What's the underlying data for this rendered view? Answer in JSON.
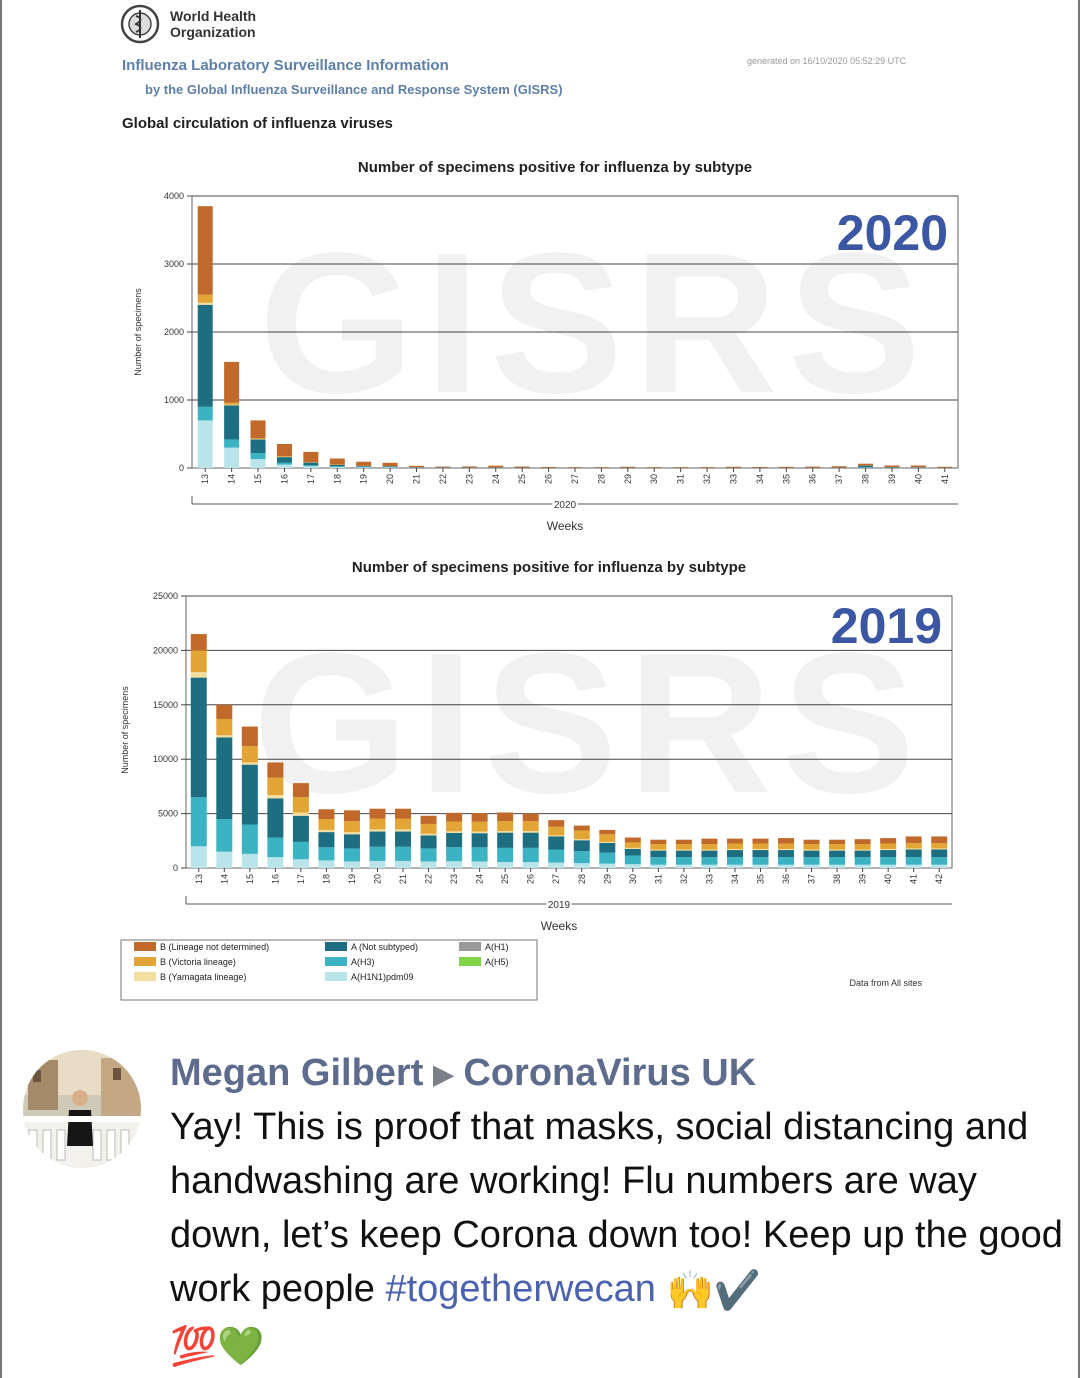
{
  "doc": {
    "org_line1": "World Health",
    "org_line2": "Organization",
    "title1": "Influenza Laboratory Surveillance Information",
    "title2": "by the Global Influenza Surveillance and Response System (GISRS)",
    "generated": "generated on 16/10/2020 05:52:29 UTC",
    "section": "Global circulation of influenza viruses",
    "watermark": "GISRS",
    "source": "Data from All sites"
  },
  "legend": {
    "items": [
      {
        "label": "B (Lineage not determined)",
        "color": "#c0692a"
      },
      {
        "label": "B (Victoria lineage)",
        "color": "#e3a535"
      },
      {
        "label": "B (Yamagata lineage)",
        "color": "#f2dea1"
      },
      {
        "label": "A (Not subtyped)",
        "color": "#1c6e80"
      },
      {
        "label": "A(H3)",
        "color": "#3bb3c2"
      },
      {
        "label": "A(H1N1)pdm09",
        "color": "#b8e4ea"
      },
      {
        "label": "A(H1)",
        "color": "#999999"
      },
      {
        "label": "A(H5)",
        "color": "#7fd447"
      }
    ]
  },
  "chart_data": [
    {
      "type": "bar",
      "stacked": true,
      "title": "Number of specimens positive for influenza by subtype",
      "year_label": "2020",
      "ylabel": "Number of specimens",
      "xlabel": "Weeks",
      "group_label": "2020",
      "ylim": [
        0,
        4000
      ],
      "yticks": [
        0,
        1000,
        2000,
        3000,
        4000
      ],
      "categories": [
        "13",
        "14",
        "15",
        "16",
        "17",
        "18",
        "19",
        "20",
        "21",
        "22",
        "23",
        "24",
        "25",
        "26",
        "27",
        "28",
        "29",
        "30",
        "31",
        "32",
        "33",
        "34",
        "35",
        "36",
        "37",
        "38",
        "39",
        "40",
        "41"
      ],
      "series": [
        {
          "name": "A(H1N1)pdm09",
          "color": "#b8e4ea",
          "values": [
            700,
            300,
            130,
            50,
            25,
            15,
            10,
            8,
            3,
            2,
            2,
            2,
            1,
            1,
            1,
            1,
            1,
            1,
            1,
            1,
            1,
            1,
            1,
            1,
            1,
            5,
            2,
            2,
            1
          ]
        },
        {
          "name": "A(H3)",
          "color": "#3bb3c2",
          "values": [
            200,
            120,
            90,
            30,
            15,
            10,
            6,
            5,
            2,
            2,
            2,
            2,
            1,
            1,
            1,
            1,
            1,
            1,
            1,
            1,
            1,
            1,
            1,
            1,
            1,
            5,
            3,
            2,
            1
          ]
        },
        {
          "name": "A (Not subtyped)",
          "color": "#1c6e80",
          "values": [
            1500,
            500,
            200,
            80,
            40,
            20,
            12,
            10,
            5,
            4,
            3,
            3,
            3,
            2,
            2,
            2,
            3,
            2,
            2,
            2,
            3,
            2,
            2,
            3,
            4,
            25,
            8,
            6,
            3
          ]
        },
        {
          "name": "B (Yamagata lineage)",
          "color": "#f2dea1",
          "values": [
            30,
            10,
            5,
            3,
            2,
            1,
            1,
            1,
            0,
            0,
            0,
            0,
            0,
            0,
            0,
            0,
            0,
            0,
            0,
            0,
            0,
            0,
            0,
            0,
            0,
            0,
            0,
            0,
            0
          ]
        },
        {
          "name": "B (Victoria lineage)",
          "color": "#e3a535",
          "values": [
            120,
            30,
            15,
            10,
            5,
            4,
            3,
            3,
            2,
            1,
            1,
            2,
            1,
            1,
            1,
            1,
            1,
            1,
            1,
            1,
            1,
            1,
            1,
            1,
            2,
            3,
            2,
            2,
            1
          ]
        },
        {
          "name": "B (Lineage not determined)",
          "color": "#c0692a",
          "values": [
            1300,
            600,
            260,
            180,
            150,
            90,
            60,
            50,
            20,
            12,
            15,
            25,
            15,
            10,
            8,
            8,
            12,
            8,
            8,
            8,
            12,
            10,
            12,
            14,
            18,
            25,
            22,
            25,
            12
          ]
        }
      ]
    },
    {
      "type": "bar",
      "stacked": true,
      "title": "Number of specimens positive for influenza by subtype",
      "year_label": "2019",
      "ylabel": "Number of specimens",
      "xlabel": "Weeks",
      "group_label": "2019",
      "ylim": [
        0,
        25000
      ],
      "yticks": [
        0,
        5000,
        10000,
        15000,
        20000,
        25000
      ],
      "categories": [
        "13",
        "14",
        "15",
        "16",
        "17",
        "18",
        "19",
        "20",
        "21",
        "22",
        "23",
        "24",
        "25",
        "26",
        "27",
        "28",
        "29",
        "30",
        "31",
        "32",
        "33",
        "34",
        "35",
        "36",
        "37",
        "38",
        "39",
        "40",
        "41",
        "42"
      ],
      "series": [
        {
          "name": "A(H1N1)pdm09",
          "color": "#b8e4ea",
          "values": [
            2000,
            1500,
            1300,
            1000,
            800,
            700,
            600,
            650,
            650,
            600,
            620,
            600,
            550,
            550,
            500,
            450,
            400,
            350,
            300,
            300,
            300,
            300,
            300,
            300,
            300,
            300,
            300,
            300,
            300,
            300
          ]
        },
        {
          "name": "A(H3)",
          "color": "#3bb3c2",
          "values": [
            4500,
            3000,
            2700,
            1800,
            1600,
            1200,
            1200,
            1300,
            1300,
            1200,
            1300,
            1300,
            1300,
            1300,
            1200,
            1100,
            1000,
            800,
            700,
            700,
            700,
            700,
            700,
            700,
            700,
            700,
            700,
            700,
            700,
            700
          ]
        },
        {
          "name": "A (Not subtyped)",
          "color": "#1c6e80",
          "values": [
            11000,
            7500,
            5500,
            3600,
            2400,
            1400,
            1300,
            1400,
            1400,
            1200,
            1300,
            1300,
            1400,
            1400,
            1200,
            1000,
            900,
            600,
            600,
            600,
            600,
            650,
            650,
            650,
            600,
            600,
            600,
            650,
            700,
            700
          ]
        },
        {
          "name": "B (Yamagata lineage)",
          "color": "#f2dea1",
          "values": [
            500,
            200,
            200,
            300,
            300,
            200,
            200,
            200,
            200,
            150,
            150,
            150,
            150,
            150,
            100,
            100,
            100,
            100,
            100,
            100,
            100,
            100,
            100,
            100,
            100,
            100,
            100,
            100,
            100,
            100
          ]
        },
        {
          "name": "B (Victoria lineage)",
          "color": "#e3a535",
          "values": [
            2000,
            1500,
            1500,
            1600,
            1400,
            1000,
            1000,
            1000,
            1000,
            900,
            900,
            900,
            900,
            900,
            800,
            800,
            700,
            500,
            500,
            500,
            500,
            500,
            500,
            500,
            500,
            500,
            500,
            500,
            500,
            500
          ]
        },
        {
          "name": "B (Lineage not determined)",
          "color": "#c0692a",
          "values": [
            1500,
            1300,
            1800,
            1400,
            1300,
            900,
            1000,
            900,
            900,
            750,
            800,
            800,
            800,
            700,
            600,
            450,
            400,
            450,
            400,
            400,
            500,
            450,
            450,
            500,
            400,
            400,
            450,
            500,
            600,
            600
          ]
        }
      ]
    }
  ],
  "post": {
    "author": "Megan Gilbert",
    "group": "CoronaVirus UK",
    "text_main": "Yay! This is proof that masks, social distancing and handwashing are working! Flu numbers are way down, let’s keep Corona down too! Keep up the good work people ",
    "hashtag": "#togetherwecan",
    "emoji_line1": "🙌✔️",
    "emoji_line2": "💯💚"
  }
}
